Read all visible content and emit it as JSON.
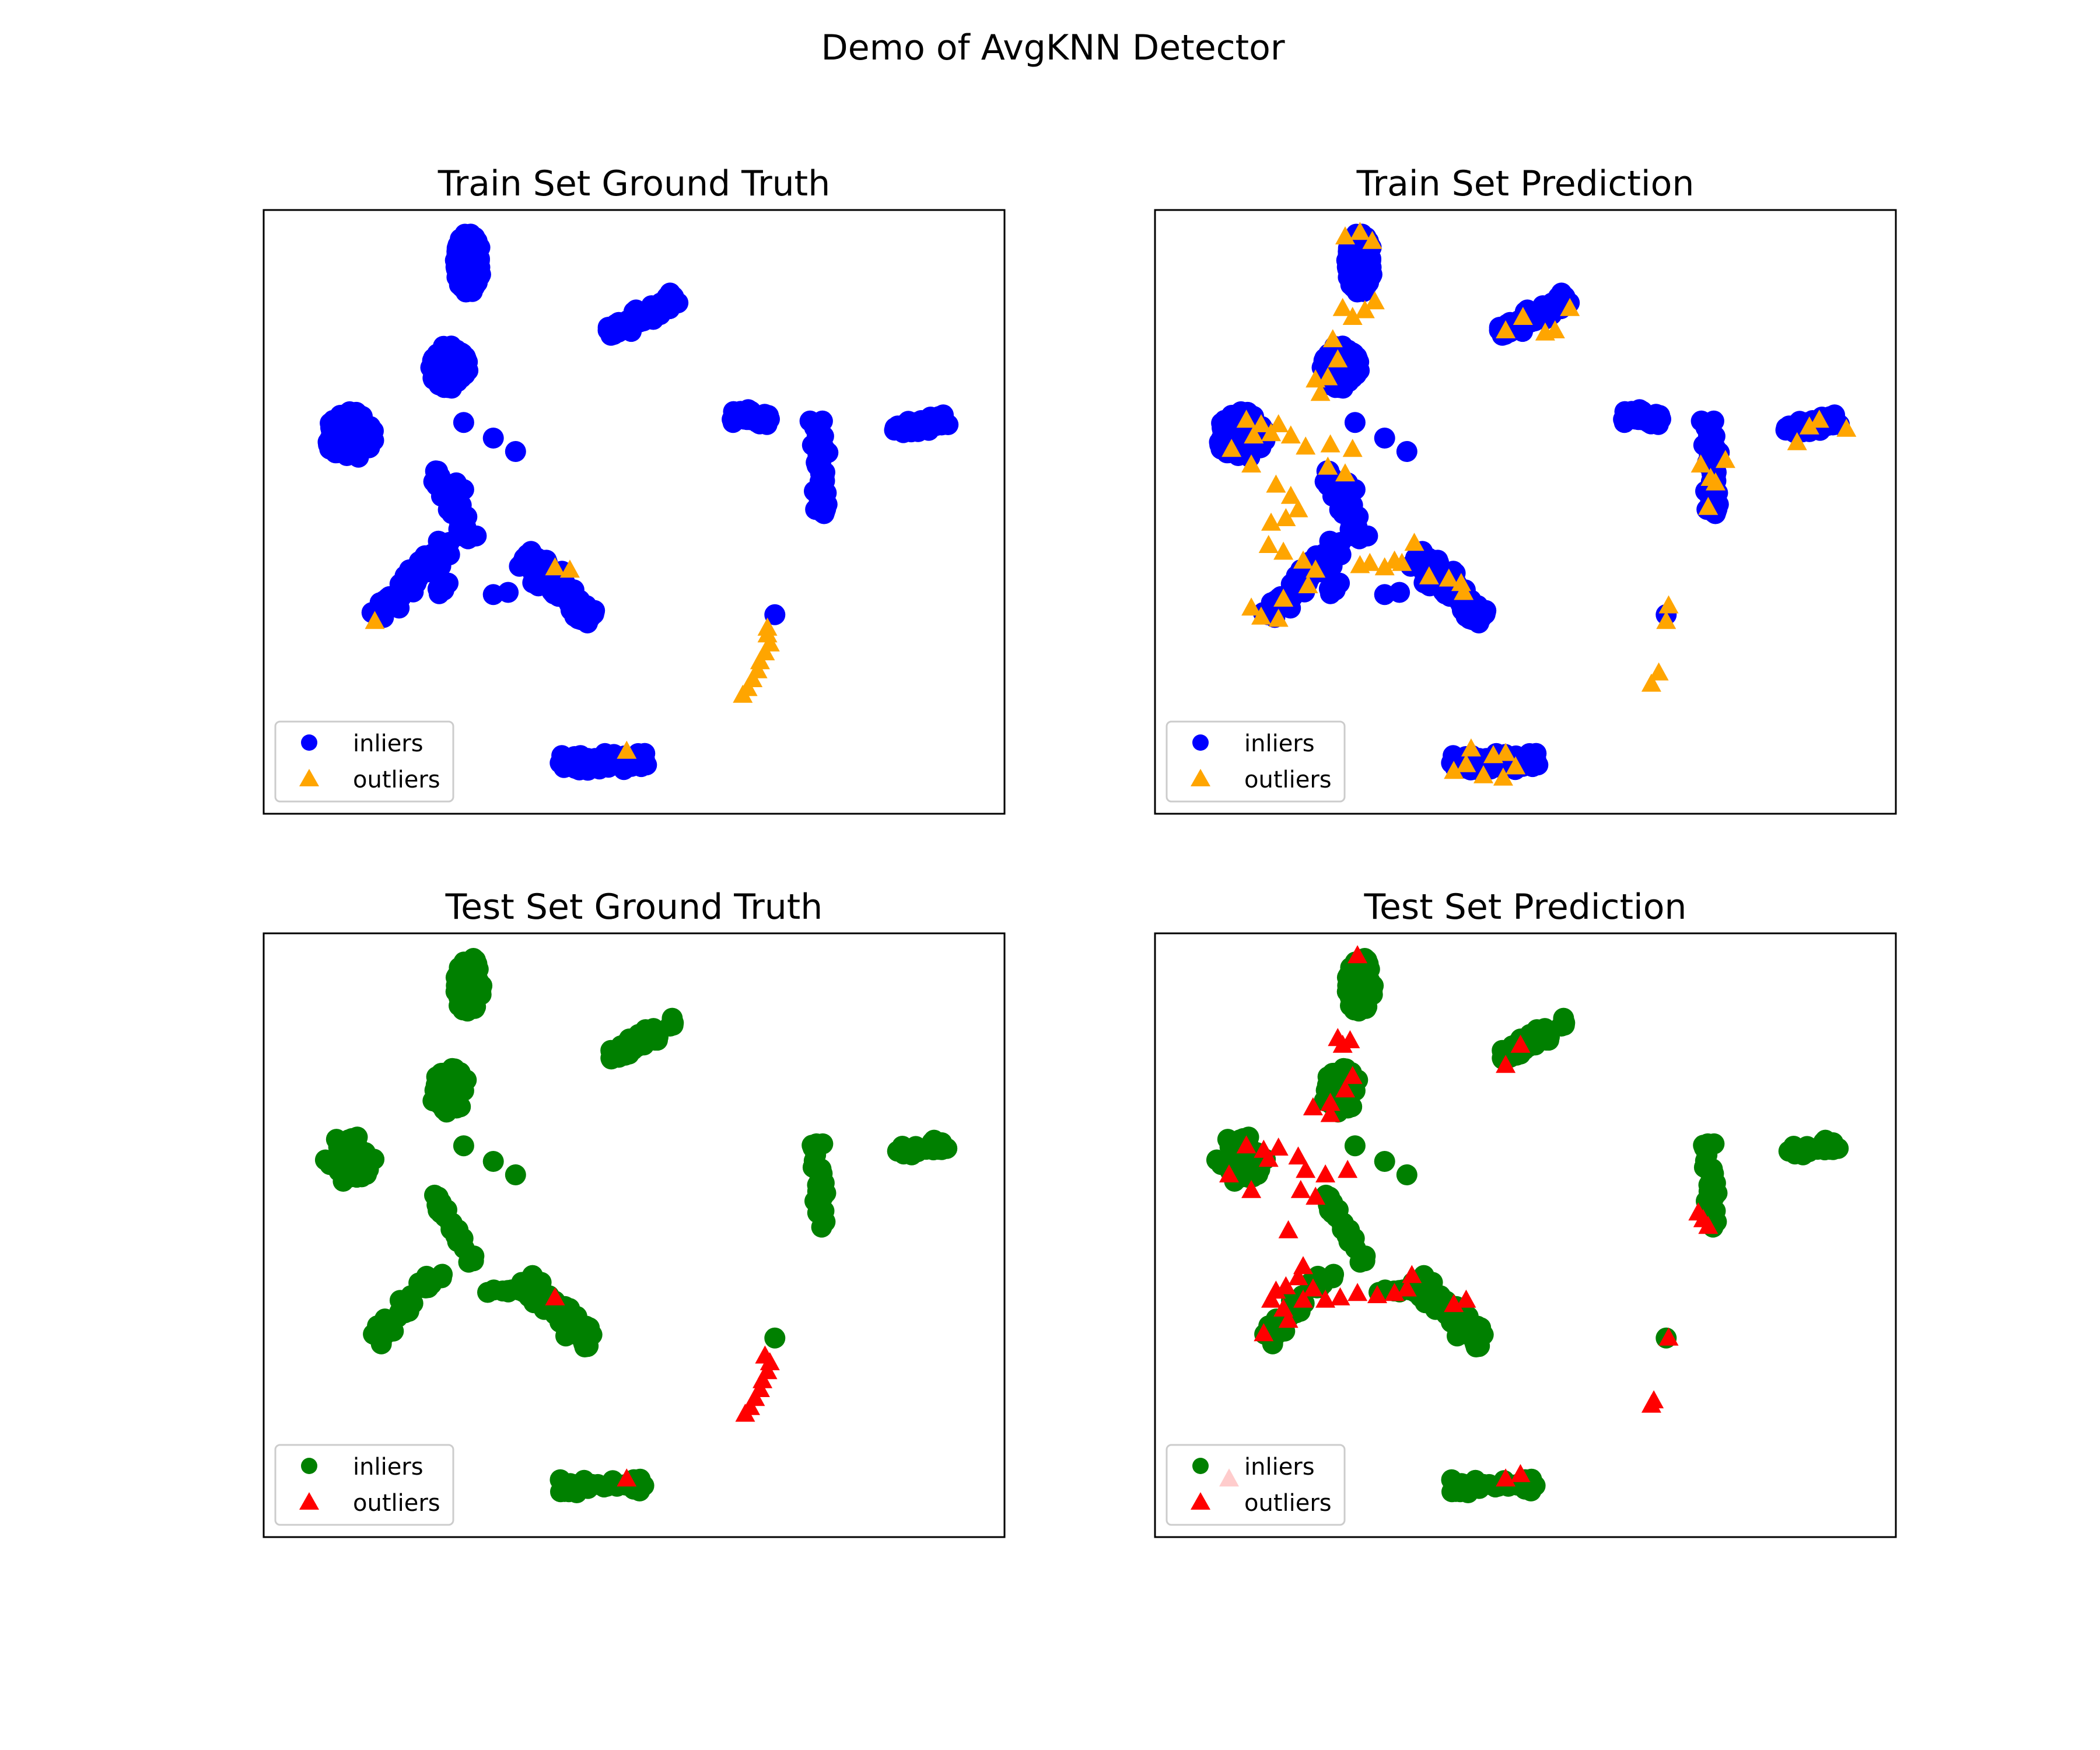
{
  "figure": {
    "suptitle": "Demo of AvgKNN Detector"
  },
  "colors": {
    "train_inlier": "#0000ff",
    "train_outlier": "#ffa500",
    "test_inlier": "#008000",
    "test_outlier": "#ff0000"
  },
  "chart_data": [
    {
      "type": "scatter",
      "title": "Train Set Ground Truth",
      "xlabel": "",
      "ylabel": "",
      "axis_ticks": "hidden",
      "legend": {
        "placement": "lower-left",
        "entries": [
          {
            "label": "inliers",
            "marker": "circle",
            "color": "#0000ff"
          },
          {
            "label": "outliers",
            "marker": "triangle",
            "color": "#ffa500"
          }
        ]
      },
      "inlier_clusters": [
        {
          "shape": "blob",
          "x": [
            6.25,
            7.35
          ],
          "y": [
            13.3,
            16.0
          ],
          "n": 140
        },
        {
          "shape": "line",
          "from": [
            12.5,
            11.5
          ],
          "to": [
            15.2,
            13.0
          ],
          "width": 0.55,
          "n": 90
        },
        {
          "shape": "blob",
          "x": [
            5.2,
            6.8
          ],
          "y": [
            9.0,
            11.0
          ],
          "n": 100
        },
        {
          "shape": "blob",
          "x": [
            1.0,
            3.0
          ],
          "y": [
            5.8,
            8.0
          ],
          "n": 110
        },
        {
          "shape": "line",
          "from": [
            17.5,
            7.9
          ],
          "to": [
            19.0,
            7.6
          ],
          "width": 0.6,
          "n": 50
        },
        {
          "shape": "line",
          "from": [
            20.9,
            7.6
          ],
          "to": [
            21.2,
            3.4
          ],
          "width": 0.45,
          "n": 60
        },
        {
          "shape": "line",
          "from": [
            24.0,
            7.2
          ],
          "to": [
            26.2,
            7.6
          ],
          "width": 0.5,
          "n": 55
        },
        {
          "shape": "line",
          "from": [
            5.4,
            5.3
          ],
          "to": [
            6.9,
            2.3
          ],
          "width": 0.5,
          "n": 50
        },
        {
          "shape": "line",
          "from": [
            6.0,
            2.2
          ],
          "to": [
            3.0,
            -1.2
          ],
          "width": 0.7,
          "n": 70
        },
        {
          "shape": "line",
          "from": [
            9.0,
            1.5
          ],
          "to": [
            11.8,
            -1.3
          ],
          "width": 0.9,
          "n": 120
        },
        {
          "shape": "line",
          "from": [
            10.5,
            -7.8
          ],
          "to": [
            14.0,
            -7.6
          ],
          "width": 0.55,
          "n": 90
        },
        {
          "shape": "line",
          "from": [
            5.9,
            0.4
          ],
          "to": [
            5.5,
            -0.2
          ],
          "width": 0.3,
          "n": 6
        },
        {
          "shape": "points",
          "pts": [
            [
              6.6,
              7.5
            ],
            [
              7.8,
              6.8
            ],
            [
              8.7,
              6.2
            ],
            [
              7.8,
              -0.2
            ],
            [
              8.4,
              -0.1
            ],
            [
              19.2,
              -1.1
            ],
            [
              6.6,
              4.5
            ],
            [
              6.3,
              4.8
            ],
            [
              6.5,
              3.8
            ]
          ]
        }
      ],
      "outliers": [
        [
          3.0,
          -1.4
        ],
        [
          10.3,
          1.0
        ],
        [
          10.9,
          0.9
        ],
        [
          13.2,
          -7.2
        ],
        [
          18.9,
          -2.0
        ],
        [
          19.0,
          -2.4
        ],
        [
          18.8,
          -2.8
        ],
        [
          18.6,
          -3.2
        ],
        [
          18.5,
          -3.6
        ],
        [
          18.3,
          -4.0
        ],
        [
          18.1,
          -4.4
        ],
        [
          17.9,
          -4.7
        ],
        [
          18.9,
          -1.7
        ]
      ]
    },
    {
      "type": "scatter",
      "title": "Train Set Prediction",
      "xlabel": "",
      "ylabel": "",
      "axis_ticks": "hidden",
      "legend": {
        "placement": "lower-left",
        "entries": [
          {
            "label": "inliers",
            "marker": "circle",
            "color": "#0000ff"
          },
          {
            "label": "outliers",
            "marker": "triangle",
            "color": "#ffa500"
          }
        ]
      },
      "inlier_clusters": "same as Train Set Ground Truth",
      "outliers": [
        [
          6.2,
          15.8
        ],
        [
          6.8,
          16.0
        ],
        [
          7.3,
          15.6
        ],
        [
          6.1,
          12.6
        ],
        [
          6.5,
          12.2
        ],
        [
          7.0,
          12.5
        ],
        [
          7.4,
          12.9
        ],
        [
          12.7,
          11.6
        ],
        [
          13.4,
          12.2
        ],
        [
          14.3,
          11.5
        ],
        [
          14.7,
          11.6
        ],
        [
          15.3,
          12.6
        ],
        [
          5.7,
          11.2
        ],
        [
          5.9,
          10.3
        ],
        [
          5.5,
          9.5
        ],
        [
          5.0,
          9.4
        ],
        [
          5.2,
          8.8
        ],
        [
          2.2,
          7.6
        ],
        [
          2.8,
          7.4
        ],
        [
          3.5,
          7.4
        ],
        [
          3.2,
          7.0
        ],
        [
          2.5,
          6.9
        ],
        [
          1.6,
          6.3
        ],
        [
          2.4,
          5.6
        ],
        [
          4.0,
          6.9
        ],
        [
          4.6,
          6.4
        ],
        [
          5.6,
          6.5
        ],
        [
          5.5,
          5.5
        ],
        [
          6.2,
          5.2
        ],
        [
          6.5,
          6.3
        ],
        [
          3.4,
          4.7
        ],
        [
          4.0,
          4.2
        ],
        [
          4.3,
          3.6
        ],
        [
          3.8,
          3.2
        ],
        [
          3.2,
          3.0
        ],
        [
          3.1,
          2.0
        ],
        [
          3.7,
          1.7
        ],
        [
          4.5,
          1.3
        ],
        [
          5.0,
          0.9
        ],
        [
          4.7,
          0.2
        ],
        [
          3.7,
          -0.4
        ],
        [
          2.4,
          -0.8
        ],
        [
          2.8,
          -1.2
        ],
        [
          3.5,
          -1.3
        ],
        [
          6.8,
          1.1
        ],
        [
          7.2,
          1.2
        ],
        [
          7.8,
          1.0
        ],
        [
          8.2,
          1.3
        ],
        [
          8.5,
          1.2
        ],
        [
          9.0,
          2.1
        ],
        [
          9.6,
          0.6
        ],
        [
          10.4,
          0.5
        ],
        [
          10.9,
          0.3
        ],
        [
          11.0,
          -0.1
        ],
        [
          19.3,
          -0.7
        ],
        [
          19.2,
          -1.4
        ],
        [
          18.9,
          -3.7
        ],
        [
          18.6,
          -4.2
        ],
        [
          20.6,
          5.6
        ],
        [
          21.0,
          5.0
        ],
        [
          20.9,
          3.7
        ],
        [
          21.2,
          4.8
        ],
        [
          21.6,
          5.8
        ],
        [
          24.5,
          6.6
        ],
        [
          25.0,
          7.3
        ],
        [
          25.4,
          7.6
        ],
        [
          26.5,
          7.2
        ],
        [
          10.6,
          -8.1
        ],
        [
          11.1,
          -7.8
        ],
        [
          11.3,
          -7.1
        ],
        [
          11.8,
          -8.3
        ],
        [
          12.2,
          -7.4
        ],
        [
          12.6,
          -8.4
        ],
        [
          13.1,
          -7.9
        ],
        [
          12.7,
          -7.3
        ]
      ]
    },
    {
      "type": "scatter",
      "title": "Test Set Ground Truth",
      "xlabel": "",
      "ylabel": "",
      "axis_ticks": "hidden",
      "legend": {
        "placement": "lower-left",
        "entries": [
          {
            "label": "inliers",
            "marker": "circle",
            "color": "#008000"
          },
          {
            "label": "outliers",
            "marker": "triangle",
            "color": "#ff0000"
          }
        ]
      },
      "inlier_clusters": [
        {
          "shape": "blob",
          "x": [
            6.25,
            7.35
          ],
          "y": [
            13.3,
            16.0
          ],
          "n": 70
        },
        {
          "shape": "line",
          "from": [
            12.5,
            11.5
          ],
          "to": [
            15.2,
            13.0
          ],
          "width": 0.55,
          "n": 45
        },
        {
          "shape": "blob",
          "x": [
            5.2,
            6.8
          ],
          "y": [
            9.0,
            11.0
          ],
          "n": 50
        },
        {
          "shape": "blob",
          "x": [
            1.0,
            3.0
          ],
          "y": [
            5.8,
            8.0
          ],
          "n": 55
        },
        {
          "shape": "line",
          "from": [
            20.9,
            7.6
          ],
          "to": [
            21.2,
            3.4
          ],
          "width": 0.45,
          "n": 30
        },
        {
          "shape": "line",
          "from": [
            24.0,
            7.2
          ],
          "to": [
            26.2,
            7.6
          ],
          "width": 0.5,
          "n": 28
        },
        {
          "shape": "line",
          "from": [
            5.4,
            5.3
          ],
          "to": [
            6.9,
            2.3
          ],
          "width": 0.5,
          "n": 25
        },
        {
          "shape": "line",
          "from": [
            6.0,
            2.2
          ],
          "to": [
            3.0,
            -1.2
          ],
          "width": 0.7,
          "n": 35
        },
        {
          "shape": "line",
          "from": [
            7.5,
            0.9
          ],
          "to": [
            9.2,
            1.1
          ],
          "width": 0.2,
          "n": 12
        },
        {
          "shape": "line",
          "from": [
            9.0,
            1.5
          ],
          "to": [
            11.8,
            -1.3
          ],
          "width": 0.9,
          "n": 60
        },
        {
          "shape": "line",
          "from": [
            10.5,
            -7.8
          ],
          "to": [
            14.0,
            -7.6
          ],
          "width": 0.55,
          "n": 45
        },
        {
          "shape": "points",
          "pts": [
            [
              6.6,
              7.5
            ],
            [
              7.8,
              6.8
            ],
            [
              8.7,
              6.2
            ],
            [
              19.2,
              -1.1
            ]
          ]
        }
      ],
      "outliers": [
        [
          10.3,
          0.7
        ],
        [
          13.2,
          -7.4
        ],
        [
          19.0,
          -2.2
        ],
        [
          18.9,
          -2.6
        ],
        [
          18.7,
          -3.0
        ],
        [
          18.6,
          -3.4
        ],
        [
          18.4,
          -3.8
        ],
        [
          18.2,
          -4.2
        ],
        [
          18.0,
          -4.5
        ],
        [
          18.8,
          -1.9
        ]
      ]
    },
    {
      "type": "scatter",
      "title": "Test Set Prediction",
      "xlabel": "",
      "ylabel": "",
      "axis_ticks": "hidden",
      "legend": {
        "placement": "lower-left",
        "entries": [
          {
            "label": "inliers",
            "marker": "circle",
            "color": "#008000"
          },
          {
            "label": "outliers",
            "marker": "triangle",
            "color": "#ff0000"
          }
        ]
      },
      "inlier_clusters": "same as Test Set Ground Truth",
      "outliers": [
        [
          6.7,
          16.0
        ],
        [
          5.9,
          12.3
        ],
        [
          6.1,
          12.0
        ],
        [
          6.4,
          12.2
        ],
        [
          12.7,
          11.1
        ],
        [
          13.3,
          12.0
        ],
        [
          6.5,
          10.6
        ],
        [
          6.2,
          10.0
        ],
        [
          5.6,
          9.4
        ],
        [
          4.9,
          9.2
        ],
        [
          5.6,
          8.9
        ],
        [
          1.5,
          6.2
        ],
        [
          2.2,
          7.5
        ],
        [
          2.9,
          7.3
        ],
        [
          3.5,
          7.4
        ],
        [
          3.1,
          6.9
        ],
        [
          4.3,
          7.0
        ],
        [
          4.6,
          6.4
        ],
        [
          5.4,
          6.2
        ],
        [
          6.3,
          6.4
        ],
        [
          2.4,
          5.5
        ],
        [
          4.4,
          5.5
        ],
        [
          5.0,
          5.2
        ],
        [
          3.9,
          3.7
        ],
        [
          4.5,
          2.1
        ],
        [
          4.3,
          1.6
        ],
        [
          3.8,
          1.2
        ],
        [
          3.4,
          1.0
        ],
        [
          3.2,
          0.6
        ],
        [
          3.7,
          0.2
        ],
        [
          4.5,
          0.6
        ],
        [
          4.9,
          1.1
        ],
        [
          2.9,
          -0.9
        ],
        [
          3.9,
          -0.3
        ],
        [
          5.4,
          0.6
        ],
        [
          6.0,
          0.7
        ],
        [
          6.7,
          0.9
        ],
        [
          7.5,
          0.8
        ],
        [
          8.2,
          0.9
        ],
        [
          8.7,
          1.1
        ],
        [
          8.9,
          1.7
        ],
        [
          10.6,
          0.4
        ],
        [
          11.1,
          0.6
        ],
        [
          20.5,
          4.5
        ],
        [
          20.7,
          4.2
        ],
        [
          20.9,
          3.9
        ],
        [
          19.3,
          -1.1
        ],
        [
          18.7,
          -3.9
        ],
        [
          18.6,
          -4.1
        ],
        [
          12.7,
          -7.4
        ],
        [
          13.3,
          -7.2
        ],
        [
          1.5,
          -7.4
        ]
      ]
    }
  ]
}
